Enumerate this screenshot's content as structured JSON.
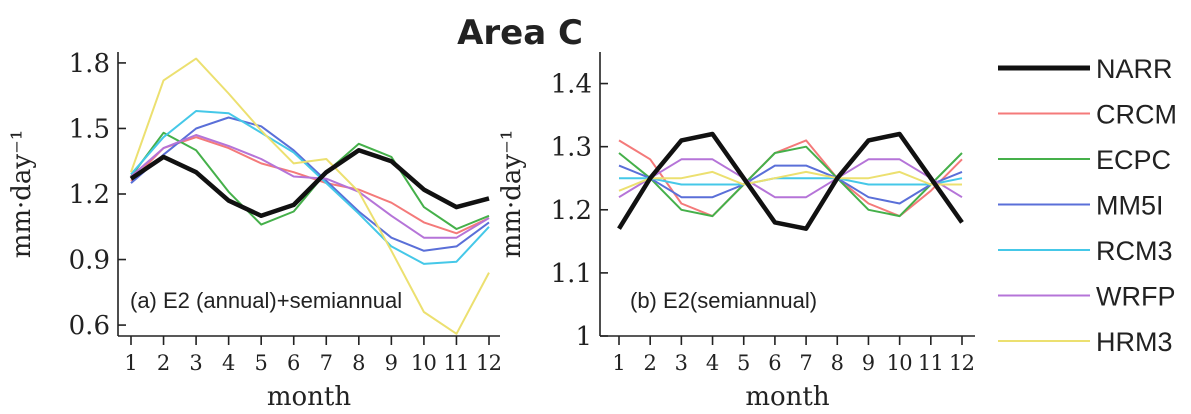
{
  "chart_data": {
    "type": "line",
    "title": "Area C",
    "x": [
      1,
      2,
      3,
      4,
      5,
      6,
      7,
      8,
      9,
      10,
      11,
      12
    ],
    "legend": [
      {
        "name": "NARR",
        "color": "#111111"
      },
      {
        "name": "CRCM",
        "color": "#f47a7a"
      },
      {
        "name": "ECPC",
        "color": "#45b04a"
      },
      {
        "name": "MM5I",
        "color": "#5a6fd8"
      },
      {
        "name": "RCM3",
        "color": "#45c8e8"
      },
      {
        "name": "WRFP",
        "color": "#b574d8"
      },
      {
        "name": "HRM3",
        "color": "#ece070"
      }
    ],
    "panels": [
      {
        "label": "(a) E2 (annual)+semiannual",
        "xlabel": "month",
        "ylabel": "mm·day⁻¹",
        "ylim": [
          0.55,
          1.85
        ],
        "yticks": [
          "0.6",
          "0.9",
          "1.2",
          "1.5",
          "1.8"
        ],
        "yticks_values": [
          0.6,
          0.9,
          1.2,
          1.5,
          1.8
        ],
        "xticks": [
          "1",
          "2",
          "3",
          "4",
          "5",
          "6",
          "7",
          "8",
          "9",
          "10",
          "11",
          "12"
        ],
        "series": [
          {
            "name": "NARR",
            "values": [
              1.27,
              1.37,
              1.3,
              1.17,
              1.1,
              1.15,
              1.3,
              1.4,
              1.35,
              1.22,
              1.14,
              1.18
            ]
          },
          {
            "name": "CRCM",
            "values": [
              1.26,
              1.41,
              1.46,
              1.41,
              1.34,
              1.3,
              1.25,
              1.22,
              1.16,
              1.07,
              1.02,
              1.09
            ]
          },
          {
            "name": "ECPC",
            "values": [
              1.28,
              1.48,
              1.4,
              1.21,
              1.06,
              1.12,
              1.3,
              1.43,
              1.37,
              1.14,
              1.04,
              1.1
            ]
          },
          {
            "name": "MM5I",
            "values": [
              1.25,
              1.38,
              1.5,
              1.55,
              1.51,
              1.4,
              1.26,
              1.12,
              1.0,
              0.94,
              0.96,
              1.07
            ]
          },
          {
            "name": "RCM3",
            "values": [
              1.29,
              1.46,
              1.58,
              1.57,
              1.48,
              1.39,
              1.25,
              1.11,
              0.96,
              0.88,
              0.89,
              1.05
            ]
          },
          {
            "name": "WRFP",
            "values": [
              1.28,
              1.41,
              1.47,
              1.42,
              1.36,
              1.28,
              1.27,
              1.21,
              1.1,
              1.0,
              1.0,
              1.09
            ]
          },
          {
            "name": "HRM3",
            "values": [
              1.3,
              1.72,
              1.82,
              1.66,
              1.49,
              1.34,
              1.36,
              1.21,
              0.94,
              0.66,
              0.56,
              0.84
            ]
          }
        ]
      },
      {
        "label": "(b) E2(semiannual)",
        "xlabel": "month",
        "ylabel": "mm·day⁻¹",
        "ylim": [
          1.0,
          1.45
        ],
        "yticks": [
          "1",
          "1.1",
          "1.2",
          "1.3",
          "1.4"
        ],
        "yticks_values": [
          1.0,
          1.1,
          1.2,
          1.3,
          1.4
        ],
        "xticks": [
          "1",
          "2",
          "3",
          "4",
          "5",
          "6",
          "7",
          "8",
          "9",
          "10",
          "11",
          "12"
        ],
        "series": [
          {
            "name": "NARR",
            "values": [
              1.17,
              1.25,
              1.31,
              1.32,
              1.25,
              1.18,
              1.17,
              1.25,
              1.31,
              1.32,
              1.25,
              1.18
            ]
          },
          {
            "name": "CRCM",
            "values": [
              1.31,
              1.28,
              1.21,
              1.19,
              1.24,
              1.29,
              1.31,
              1.25,
              1.21,
              1.19,
              1.23,
              1.28
            ]
          },
          {
            "name": "ECPC",
            "values": [
              1.29,
              1.25,
              1.2,
              1.19,
              1.24,
              1.29,
              1.3,
              1.25,
              1.2,
              1.19,
              1.24,
              1.29
            ]
          },
          {
            "name": "MM5I",
            "values": [
              1.27,
              1.25,
              1.22,
              1.22,
              1.24,
              1.27,
              1.27,
              1.25,
              1.22,
              1.21,
              1.24,
              1.26
            ]
          },
          {
            "name": "RCM3",
            "values": [
              1.25,
              1.25,
              1.24,
              1.24,
              1.24,
              1.25,
              1.25,
              1.25,
              1.24,
              1.24,
              1.24,
              1.25
            ]
          },
          {
            "name": "WRFP",
            "values": [
              1.22,
              1.25,
              1.28,
              1.28,
              1.25,
              1.22,
              1.22,
              1.25,
              1.28,
              1.28,
              1.25,
              1.22
            ]
          },
          {
            "name": "HRM3",
            "values": [
              1.23,
              1.25,
              1.25,
              1.26,
              1.24,
              1.25,
              1.26,
              1.25,
              1.25,
              1.26,
              1.24,
              1.24
            ]
          }
        ]
      }
    ]
  }
}
